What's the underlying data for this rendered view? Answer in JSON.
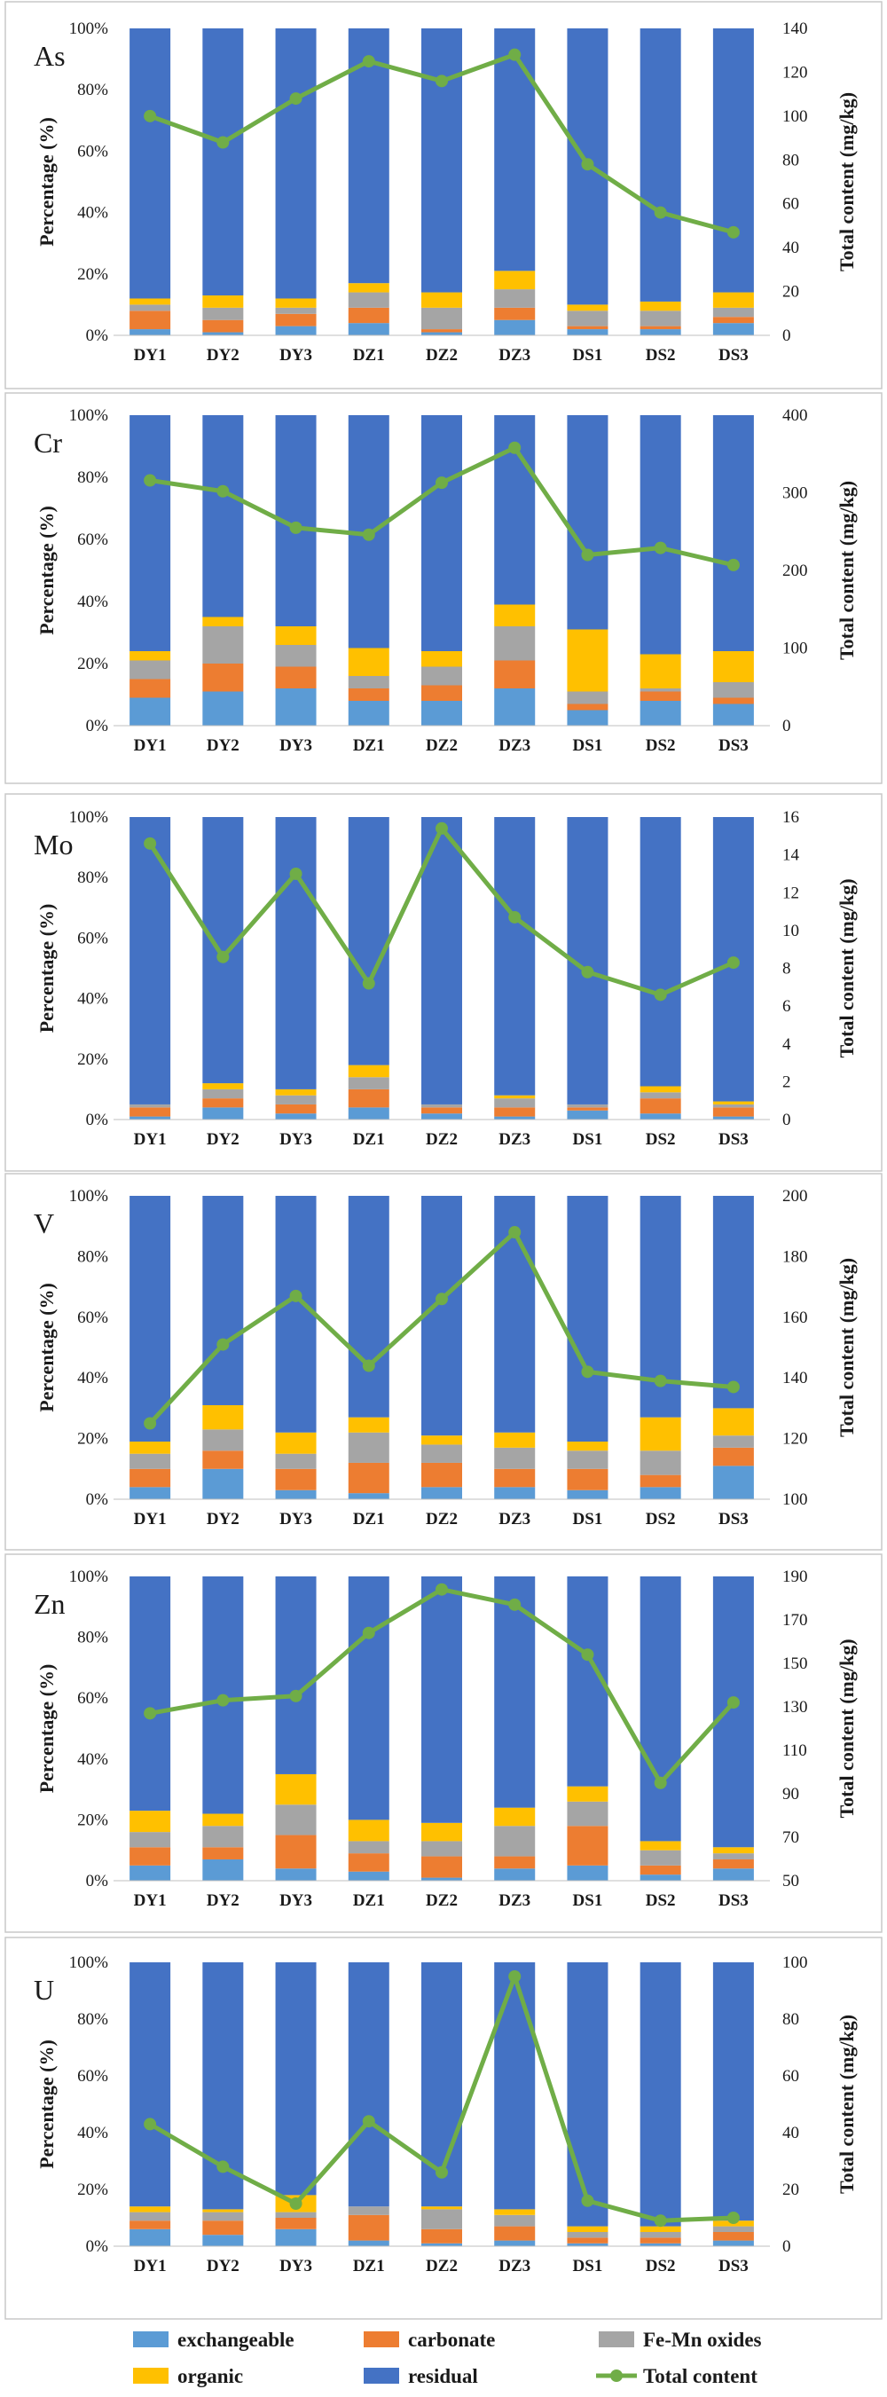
{
  "chart_data": {
    "type": "bar",
    "subtype": "stacked-percentage-bar-with-line-on-secondary-axis",
    "categories": [
      "DY1",
      "DY2",
      "DY3",
      "DZ1",
      "DZ2",
      "DZ3",
      "DS1",
      "DS2",
      "DS3"
    ],
    "fractions": [
      "exchangeable",
      "carbonate",
      "Fe-Mn oxides",
      "organic",
      "residual"
    ],
    "line_series_name": "Total content",
    "colors": {
      "exchangeable": "#5b9bd5",
      "carbonate": "#ed7d31",
      "Fe-Mn oxides": "#a5a5a5",
      "organic": "#ffc000",
      "residual": "#4472c4",
      "Total content": "#70ad47"
    },
    "ylabel": "Percentage (%)",
    "y2label": "Total content (mg/kg)",
    "ylim": [
      0,
      100
    ],
    "yticks": [
      "0%",
      "20%",
      "40%",
      "60%",
      "80%",
      "100%"
    ],
    "legend": {
      "position": "bottom",
      "entries": [
        "exchangeable",
        "carbonate",
        "Fe-Mn oxides",
        "organic",
        "residual",
        "Total content"
      ]
    },
    "panels": [
      {
        "element": "As",
        "y2lim": [
          0,
          140
        ],
        "y2ticks": [
          "0",
          "20",
          "40",
          "60",
          "80",
          "100",
          "120",
          "140"
        ],
        "fractions_pct": {
          "exchangeable": [
            2,
            1,
            3,
            4,
            1,
            5,
            2,
            2,
            4
          ],
          "carbonate": [
            6,
            4,
            4,
            5,
            1,
            4,
            1,
            1,
            2
          ],
          "Fe-Mn oxides": [
            2,
            4,
            2,
            5,
            7,
            6,
            5,
            5,
            3
          ],
          "organic": [
            2,
            4,
            3,
            3,
            5,
            6,
            2,
            3,
            5
          ],
          "residual": [
            88,
            87,
            88,
            83,
            86,
            79,
            90,
            89,
            86
          ]
        },
        "total_content": [
          100,
          88,
          108,
          125,
          116,
          128,
          78,
          56,
          47
        ]
      },
      {
        "element": "Cr",
        "y2lim": [
          0,
          400
        ],
        "y2ticks": [
          "0",
          "100",
          "200",
          "300",
          "400"
        ],
        "fractions_pct": {
          "exchangeable": [
            9,
            11,
            12,
            8,
            8,
            12,
            5,
            8,
            7
          ],
          "carbonate": [
            6,
            9,
            7,
            4,
            5,
            9,
            2,
            3,
            2
          ],
          "Fe-Mn oxides": [
            6,
            12,
            7,
            4,
            6,
            11,
            4,
            1,
            5
          ],
          "organic": [
            3,
            3,
            6,
            9,
            5,
            7,
            20,
            11,
            10
          ],
          "residual": [
            76,
            65,
            68,
            75,
            76,
            61,
            69,
            77,
            76
          ]
        },
        "total_content": [
          316,
          302,
          255,
          246,
          313,
          358,
          220,
          229,
          207
        ]
      },
      {
        "element": "Mo",
        "y2lim": [
          0,
          16
        ],
        "y2ticks": [
          "0",
          "2",
          "4",
          "6",
          "8",
          "10",
          "12",
          "14",
          "16"
        ],
        "fractions_pct": {
          "exchangeable": [
            1,
            4,
            2,
            4,
            2,
            1,
            3,
            2,
            1
          ],
          "carbonate": [
            3,
            3,
            3,
            6,
            2,
            3,
            1,
            5,
            3
          ],
          "Fe-Mn oxides": [
            1,
            3,
            3,
            4,
            1,
            3,
            1,
            2,
            1
          ],
          "organic": [
            0,
            2,
            2,
            4,
            0,
            1,
            0,
            2,
            1
          ],
          "residual": [
            95,
            88,
            90,
            82,
            95,
            92,
            95,
            89,
            94
          ]
        },
        "total_content": [
          14.6,
          8.6,
          13.0,
          7.2,
          15.4,
          10.7,
          7.8,
          6.6,
          8.3
        ]
      },
      {
        "element": "V",
        "y2lim": [
          100,
          200
        ],
        "y2ticks": [
          "100",
          "120",
          "140",
          "160",
          "180",
          "200"
        ],
        "fractions_pct": {
          "exchangeable": [
            4,
            10,
            3,
            2,
            4,
            4,
            3,
            4,
            11
          ],
          "carbonate": [
            6,
            6,
            7,
            10,
            8,
            6,
            7,
            4,
            6
          ],
          "Fe-Mn oxides": [
            5,
            7,
            5,
            10,
            6,
            7,
            6,
            8,
            4
          ],
          "organic": [
            4,
            8,
            7,
            5,
            3,
            5,
            3,
            11,
            9
          ],
          "residual": [
            81,
            69,
            78,
            73,
            79,
            78,
            81,
            73,
            70
          ]
        },
        "total_content": [
          125,
          151,
          167,
          144,
          166,
          188,
          142,
          139,
          137
        ]
      },
      {
        "element": "Zn",
        "y2lim": [
          50,
          190
        ],
        "y2ticks": [
          "50",
          "70",
          "90",
          "110",
          "130",
          "150",
          "170",
          "190"
        ],
        "fractions_pct": {
          "exchangeable": [
            5,
            7,
            4,
            3,
            1,
            4,
            5,
            2,
            4
          ],
          "carbonate": [
            6,
            4,
            11,
            6,
            7,
            4,
            13,
            3,
            3
          ],
          "Fe-Mn oxides": [
            5,
            7,
            10,
            4,
            5,
            10,
            8,
            5,
            2
          ],
          "organic": [
            7,
            4,
            10,
            7,
            6,
            6,
            5,
            3,
            2
          ],
          "residual": [
            77,
            78,
            65,
            80,
            81,
            76,
            69,
            87,
            89
          ]
        },
        "total_content": [
          127,
          133,
          135,
          164,
          184,
          177,
          154,
          95,
          132
        ]
      },
      {
        "element": "U",
        "y2lim": [
          0,
          100
        ],
        "y2ticks": [
          "0",
          "20",
          "40",
          "60",
          "80",
          "100"
        ],
        "fractions_pct": {
          "exchangeable": [
            6,
            4,
            6,
            2,
            1,
            2,
            1,
            1,
            2
          ],
          "carbonate": [
            3,
            5,
            4,
            9,
            5,
            5,
            2,
            2,
            3
          ],
          "Fe-Mn oxides": [
            3,
            3,
            2,
            3,
            7,
            4,
            2,
            2,
            2
          ],
          "organic": [
            2,
            1,
            6,
            0,
            1,
            2,
            2,
            2,
            2
          ],
          "residual": [
            86,
            87,
            82,
            86,
            86,
            87,
            93,
            93,
            91
          ]
        },
        "total_content": [
          43,
          28,
          15,
          44,
          26,
          95,
          16,
          9,
          10
        ]
      }
    ]
  }
}
